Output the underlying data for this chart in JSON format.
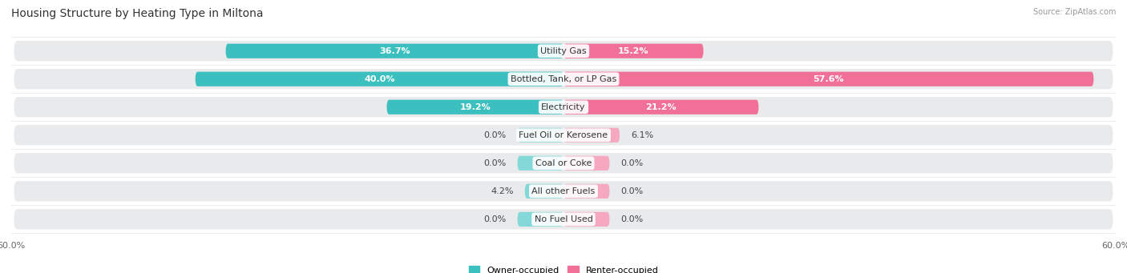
{
  "title": "Housing Structure by Heating Type in Miltona",
  "source": "Source: ZipAtlas.com",
  "categories": [
    "Utility Gas",
    "Bottled, Tank, or LP Gas",
    "Electricity",
    "Fuel Oil or Kerosene",
    "Coal or Coke",
    "All other Fuels",
    "No Fuel Used"
  ],
  "owner_values": [
    36.7,
    40.0,
    19.2,
    0.0,
    0.0,
    4.2,
    0.0
  ],
  "renter_values": [
    15.2,
    57.6,
    21.2,
    6.1,
    0.0,
    0.0,
    0.0
  ],
  "owner_color": "#3BBFBF",
  "renter_color": "#F07098",
  "owner_color_light": "#85D8D8",
  "renter_color_light": "#F5A8C0",
  "owner_label": "Owner-occupied",
  "renter_label": "Renter-occupied",
  "x_max": 60.0,
  "min_bar_display": 5.0,
  "background_color": "#ffffff",
  "row_bg_color": "#e8e8e8",
  "row_bg_color2": "#f2f2f2",
  "title_fontsize": 10,
  "label_fontsize": 8,
  "value_fontsize": 8,
  "axis_label_fontsize": 8,
  "legend_fontsize": 8
}
